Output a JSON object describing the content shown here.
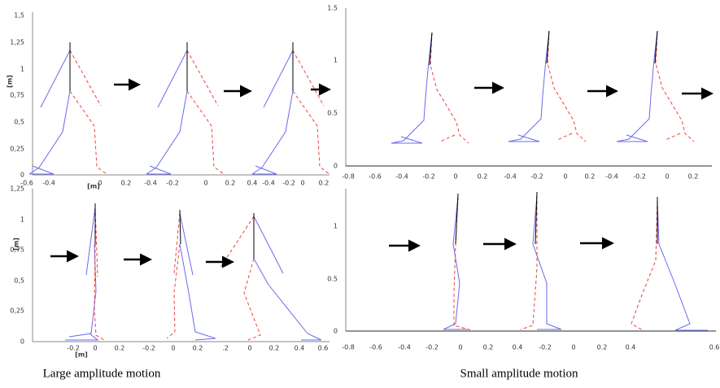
{
  "panels": [
    {
      "yticks": [
        "0",
        "0,25",
        "0,5",
        "0,75",
        "1",
        "1,25",
        "1,5"
      ],
      "ylabel": "[m]",
      "xlabel": "[m]",
      "xticks": [
        "-0.6",
        "-0.4",
        "0",
        "0.2",
        "-0.4",
        "-0.2",
        "0",
        "0.2",
        "0.4",
        "-0.4",
        "-0.2",
        "0",
        "0.2"
      ]
    },
    {
      "yticks": [
        "0",
        "0.5",
        "1",
        "1.5"
      ],
      "xticks": [
        "-0.8",
        "-0.6",
        "-0.4",
        "-0.2",
        "0",
        "0.2",
        "-0.4",
        "-0.2",
        "0",
        "0.2",
        "-0.4",
        "-0.2",
        "0",
        "0.2"
      ]
    },
    {
      "yticks": [
        "0",
        "0,25",
        "0,5",
        "0,75",
        "1",
        "1,25"
      ],
      "ylabel": "[m]",
      "xlabel": "[m]",
      "xticks": [
        "-0.2",
        "0",
        "0.2",
        "-0.2",
        "0",
        "0.2",
        ".2",
        "0",
        "0.2",
        "0.4",
        "0.6"
      ]
    },
    {
      "yticks": [
        "0",
        "0.5",
        "1"
      ],
      "xticks": [
        "-0.8",
        "-0.6",
        "-0.4",
        "-0.2",
        "0",
        "0.2",
        "0.4",
        "-0.2",
        "0",
        "0.2",
        "0.4",
        "0.6"
      ]
    }
  ],
  "captions": [
    "Large amplitude motion",
    "Small amplitude motion"
  ]
}
